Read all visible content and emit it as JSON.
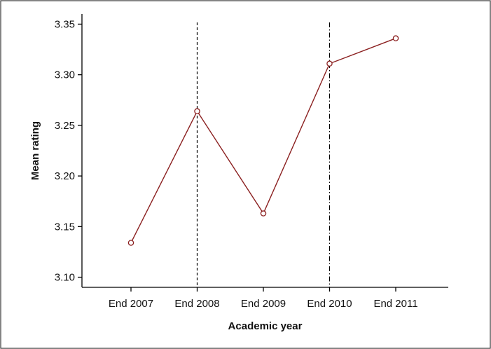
{
  "chart_data": {
    "type": "line",
    "title": "",
    "xlabel": "Academic year",
    "ylabel": "Mean rating",
    "categories": [
      "End 2007",
      "End 2008",
      "End 2009",
      "End 2010",
      "End 2011"
    ],
    "series": [
      {
        "values": [
          3.134,
          3.264,
          3.163,
          3.311,
          3.336
        ],
        "color": "#8B2020",
        "marker": "open-circle"
      }
    ],
    "ylim": [
      3.09,
      3.36
    ],
    "yticks": [
      "3.10",
      "3.15",
      "3.20",
      "3.25",
      "3.30",
      "3.35"
    ],
    "reference_lines": [
      {
        "category": "End 2008",
        "style": "dashed"
      },
      {
        "category": "End 2010",
        "style": "dash-dot"
      }
    ],
    "grid": false,
    "frame": true,
    "colors": {
      "series": "#8B2020",
      "axis": "#000000",
      "frame": "#333333",
      "reference_line": "#000000"
    }
  }
}
